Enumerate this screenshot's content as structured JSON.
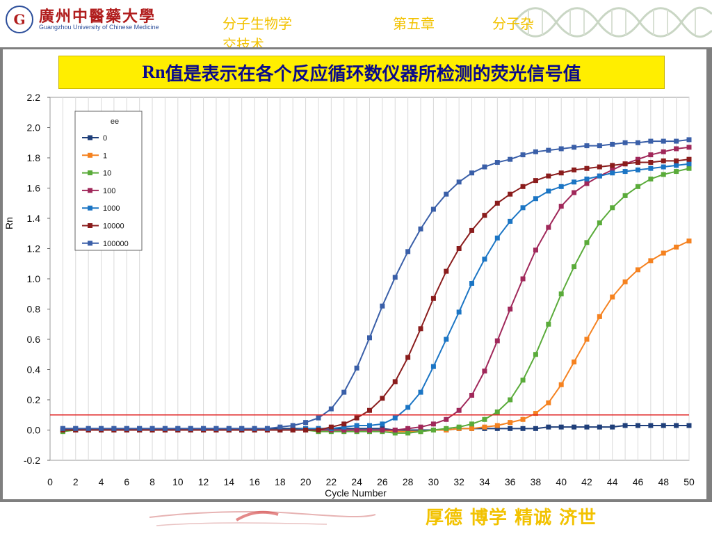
{
  "header": {
    "logo_cn": "廣州中醫藥大學",
    "logo_en": "Guangzhou University of Chinese Medicine",
    "logo_mark": "G",
    "course_1": "分子生物学",
    "course_2": "第五章",
    "course_3": "分子杂",
    "course_4": "交技术"
  },
  "slide_title": {
    "prefix": "Rn",
    "rest": "值是表示在各个反应循环数仪器所检测的荧光信号值"
  },
  "footer": {
    "motto": "厚德  博学  精诚  济世"
  },
  "colors": {
    "threshold": "#e02020",
    "title_bg": "#ffee00",
    "title_text": "#0a0a8a",
    "course_text": "#f2c200"
  },
  "chart_data": {
    "type": "line",
    "xlabel": "Cycle Number",
    "ylabel": "Rn",
    "xlim": [
      0,
      50
    ],
    "ylim": [
      -0.2,
      2.2
    ],
    "xticks": [
      0,
      2,
      4,
      6,
      8,
      10,
      12,
      14,
      16,
      18,
      20,
      22,
      24,
      26,
      28,
      30,
      32,
      34,
      36,
      38,
      40,
      42,
      44,
      46,
      48,
      50
    ],
    "yticks": [
      -0.2,
      0.0,
      0.2,
      0.4,
      0.6,
      0.8,
      1.0,
      1.2,
      1.4,
      1.6,
      1.8,
      2.0,
      2.2
    ],
    "ytick_labels": [
      "-0.2",
      "0.0",
      "0.2",
      "0.4",
      "0.6",
      "0.8",
      "1.0",
      "1.2",
      "1.4",
      "1.6",
      "1.8",
      "2.0",
      "2.2"
    ],
    "grid": "vertical",
    "threshold": 0.1,
    "legend": {
      "title": "ee",
      "placement": "top-left"
    },
    "series": [
      {
        "name": "0",
        "color": "#1f3f7a",
        "values": [
          0.01,
          0.01,
          0.01,
          0.01,
          0.01,
          0.01,
          0.01,
          0.01,
          0.01,
          0.01,
          0.01,
          0.01,
          0.01,
          0.01,
          0.01,
          0.01,
          0.01,
          0.01,
          0.01,
          0.01,
          0.01,
          0.01,
          0.01,
          0.01,
          0.01,
          0.01,
          0.0,
          0.0,
          0.0,
          0.0,
          0.0,
          0.01,
          0.01,
          0.01,
          0.01,
          0.01,
          0.01,
          0.01,
          0.02,
          0.02,
          0.02,
          0.02,
          0.02,
          0.02,
          0.03,
          0.03,
          0.03,
          0.03,
          0.03,
          0.03
        ]
      },
      {
        "name": "1",
        "color": "#f58220",
        "values": [
          0.0,
          0.0,
          0.0,
          0.0,
          0.0,
          0.0,
          0.0,
          0.0,
          0.0,
          0.0,
          0.0,
          0.0,
          0.0,
          0.0,
          0.0,
          0.0,
          0.0,
          0.0,
          0.0,
          0.0,
          0.0,
          0.0,
          0.0,
          0.0,
          0.0,
          0.0,
          -0.01,
          -0.01,
          -0.01,
          0.0,
          0.0,
          0.01,
          0.01,
          0.02,
          0.03,
          0.05,
          0.07,
          0.11,
          0.18,
          0.3,
          0.45,
          0.6,
          0.75,
          0.88,
          0.98,
          1.06,
          1.12,
          1.17,
          1.21,
          1.25
        ]
      },
      {
        "name": "10",
        "color": "#5aab3a",
        "values": [
          -0.01,
          0.0,
          0.0,
          0.0,
          0.0,
          0.0,
          0.0,
          0.0,
          0.0,
          0.0,
          0.0,
          0.0,
          0.0,
          0.0,
          0.0,
          0.0,
          0.0,
          0.0,
          0.0,
          0.0,
          -0.01,
          -0.01,
          -0.01,
          -0.01,
          -0.01,
          -0.01,
          -0.02,
          -0.02,
          -0.01,
          0.0,
          0.01,
          0.02,
          0.04,
          0.07,
          0.12,
          0.2,
          0.33,
          0.5,
          0.7,
          0.9,
          1.08,
          1.24,
          1.37,
          1.47,
          1.55,
          1.61,
          1.66,
          1.69,
          1.71,
          1.73
        ]
      },
      {
        "name": "100",
        "color": "#a0285a",
        "values": [
          0.0,
          0.0,
          0.0,
          0.0,
          0.0,
          0.0,
          0.0,
          0.0,
          0.0,
          0.0,
          0.0,
          0.0,
          0.0,
          0.0,
          0.0,
          0.0,
          0.0,
          0.0,
          0.0,
          0.0,
          0.0,
          0.0,
          0.0,
          0.0,
          0.0,
          0.0,
          0.0,
          0.01,
          0.02,
          0.04,
          0.07,
          0.13,
          0.23,
          0.39,
          0.59,
          0.8,
          1.0,
          1.19,
          1.34,
          1.48,
          1.57,
          1.63,
          1.68,
          1.72,
          1.76,
          1.79,
          1.82,
          1.84,
          1.86,
          1.87
        ]
      },
      {
        "name": "1000",
        "color": "#1b75c4",
        "values": [
          0.0,
          0.0,
          0.0,
          0.0,
          0.0,
          0.0,
          0.0,
          0.0,
          0.0,
          0.0,
          0.0,
          0.0,
          0.0,
          0.0,
          0.0,
          0.0,
          0.0,
          0.0,
          0.0,
          0.01,
          0.01,
          0.01,
          0.02,
          0.03,
          0.03,
          0.04,
          0.08,
          0.15,
          0.25,
          0.42,
          0.6,
          0.78,
          0.97,
          1.13,
          1.27,
          1.38,
          1.47,
          1.53,
          1.58,
          1.61,
          1.64,
          1.66,
          1.68,
          1.7,
          1.71,
          1.72,
          1.73,
          1.74,
          1.75,
          1.76
        ]
      },
      {
        "name": "10000",
        "color": "#8a1c1c",
        "values": [
          0.0,
          0.0,
          0.0,
          0.0,
          0.0,
          0.0,
          0.0,
          0.0,
          0.0,
          0.0,
          0.0,
          0.0,
          0.0,
          0.0,
          0.0,
          0.0,
          0.0,
          0.0,
          0.0,
          0.0,
          0.0,
          0.02,
          0.04,
          0.08,
          0.13,
          0.21,
          0.32,
          0.48,
          0.67,
          0.87,
          1.05,
          1.2,
          1.32,
          1.42,
          1.5,
          1.56,
          1.61,
          1.65,
          1.68,
          1.7,
          1.72,
          1.73,
          1.74,
          1.75,
          1.76,
          1.77,
          1.77,
          1.78,
          1.78,
          1.79
        ]
      },
      {
        "name": "100000",
        "color": "#3a5fa8",
        "values": [
          0.01,
          0.01,
          0.01,
          0.01,
          0.01,
          0.01,
          0.01,
          0.01,
          0.01,
          0.01,
          0.01,
          0.01,
          0.01,
          0.01,
          0.01,
          0.01,
          0.01,
          0.02,
          0.03,
          0.05,
          0.08,
          0.14,
          0.25,
          0.41,
          0.61,
          0.82,
          1.01,
          1.18,
          1.33,
          1.46,
          1.56,
          1.64,
          1.7,
          1.74,
          1.77,
          1.79,
          1.82,
          1.84,
          1.85,
          1.86,
          1.87,
          1.88,
          1.88,
          1.89,
          1.9,
          1.9,
          1.91,
          1.91,
          1.91,
          1.92
        ]
      }
    ]
  }
}
